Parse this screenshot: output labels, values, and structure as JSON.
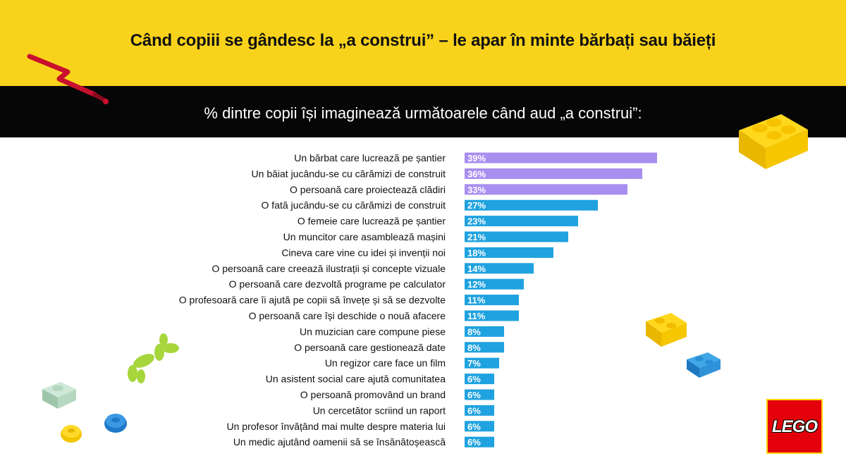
{
  "header": {
    "title": "Când copiii se gândesc la „a construi” – le apar în minte bărbați sau băieți",
    "subtitle": "% dintre copii își imaginează următoarele când aud „a construi”:"
  },
  "logo": {
    "text": "LEGO"
  },
  "colors": {
    "yellow": "#f9d31b",
    "black": "#060606",
    "purple": "#a98ef0",
    "blue": "#1fa2df",
    "lego_red": "#e3000b"
  },
  "chart_data": {
    "type": "bar",
    "orientation": "horizontal",
    "value_unit": "%",
    "categories": [
      "Un bărbat care lucrează pe șantier",
      "Un băiat jucându-se cu cărămizi de construit",
      "O persoană care proiectează clădiri",
      "O fată jucându-se cu cărămizi de construit",
      "O femeie care lucrează pe șantier",
      "Un muncitor care asamblează mașini",
      "Cineva care vine cu idei și invenții noi",
      "O persoană care creează ilustrații și concepte vizuale",
      "O persoană care dezvoltă programe pe calculator",
      "O profesoară care îi ajută pe copii să învețe și să se dezvolte",
      "O persoană care își deschide o nouă afacere",
      "Un muzician care compune piese",
      "O persoană care gestionează date",
      "Un regizor care face un film",
      "Un asistent social care ajută comunitatea",
      "O persoană promovând un brand",
      "Un cercetător scriind un raport",
      "Un profesor învățând mai multe despre materia lui",
      "Un medic ajutând oamenii să se însănătoșească"
    ],
    "values": [
      39,
      36,
      33,
      27,
      23,
      21,
      18,
      14,
      12,
      11,
      11,
      8,
      8,
      7,
      6,
      6,
      6,
      6,
      6
    ],
    "value_labels": [
      "39%",
      "36%",
      "33%",
      "27%",
      "23%",
      "21%",
      "18%",
      "14%",
      "12%",
      "11%",
      "11%",
      "8%",
      "8%",
      "7%",
      "6%",
      "6%",
      "6%",
      "6%",
      "6%"
    ],
    "bar_colors": [
      "#a98ef0",
      "#a98ef0",
      "#a98ef0",
      "#1fa2df",
      "#1fa2df",
      "#1fa2df",
      "#1fa2df",
      "#1fa2df",
      "#1fa2df",
      "#1fa2df",
      "#1fa2df",
      "#1fa2df",
      "#1fa2df",
      "#1fa2df",
      "#1fa2df",
      "#1fa2df",
      "#1fa2df",
      "#1fa2df",
      "#1fa2df"
    ]
  }
}
